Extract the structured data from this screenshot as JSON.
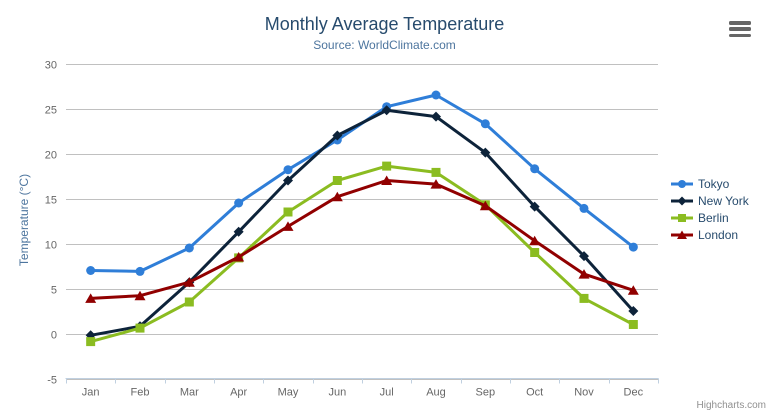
{
  "chart_data": {
    "type": "line",
    "title": "Monthly Average Temperature",
    "subtitle": "Source: WorldClimate.com",
    "xlabel": "",
    "ylabel": "Temperature (°C)",
    "categories": [
      "Jan",
      "Feb",
      "Mar",
      "Apr",
      "May",
      "Jun",
      "Jul",
      "Aug",
      "Sep",
      "Oct",
      "Nov",
      "Dec"
    ],
    "yticks": [
      -5,
      0,
      5,
      10,
      15,
      20,
      25,
      30
    ],
    "ylim": [
      -5,
      30
    ],
    "grid": "horizontal",
    "legend_position": "right",
    "series": [
      {
        "name": "Tokyo",
        "color": "#2f7ed8",
        "marker": "circle",
        "values": [
          7.0,
          6.9,
          9.5,
          14.5,
          18.2,
          21.5,
          25.2,
          26.5,
          23.3,
          18.3,
          13.9,
          9.6
        ]
      },
      {
        "name": "New York",
        "color": "#0d233a",
        "marker": "diamond",
        "values": [
          -0.2,
          0.8,
          5.7,
          11.3,
          17.0,
          22.0,
          24.8,
          24.1,
          20.1,
          14.1,
          8.6,
          2.5
        ]
      },
      {
        "name": "Berlin",
        "color": "#8bbc21",
        "marker": "square",
        "values": [
          -0.9,
          0.6,
          3.5,
          8.4,
          13.5,
          17.0,
          18.6,
          17.9,
          14.3,
          9.0,
          3.9,
          1.0
        ]
      },
      {
        "name": "London",
        "color": "#910000",
        "marker": "triangle",
        "values": [
          3.9,
          4.2,
          5.7,
          8.5,
          11.9,
          15.2,
          17.0,
          16.6,
          14.2,
          10.3,
          6.6,
          4.8
        ]
      }
    ]
  },
  "credit": "Highcharts.com",
  "menu_icon": "hamburger",
  "colors": {
    "title": "#274b6d",
    "subtitle": "#4d759e",
    "axis_title": "#4d759e",
    "tick_label": "#666666",
    "grid_line": "#c0c0c0",
    "axis_line": "#c0d0e0",
    "legend_text": "#274b6d",
    "credit_text": "#909090",
    "menu_icon": "#666666"
  }
}
